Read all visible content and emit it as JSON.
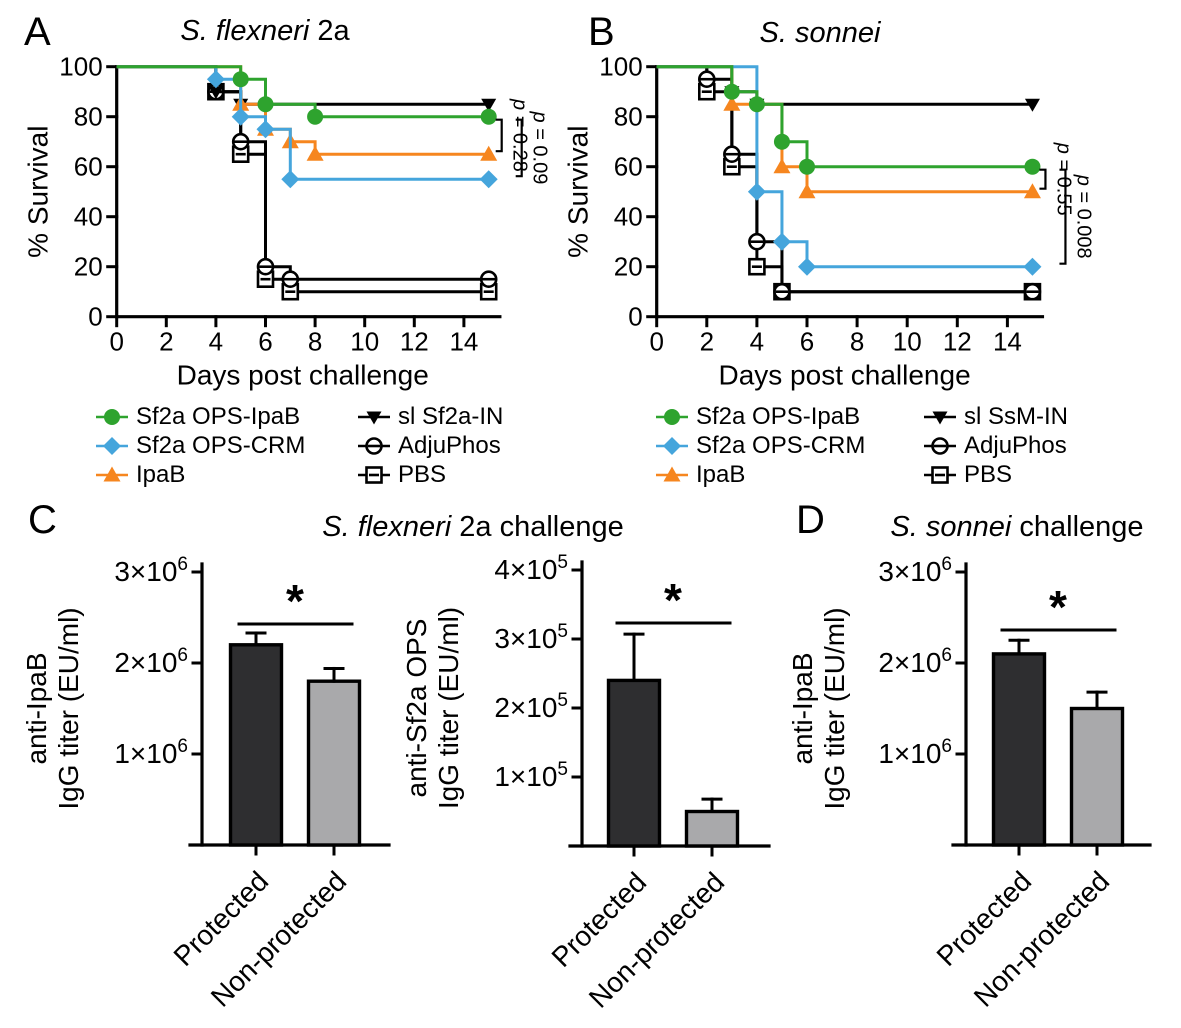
{
  "panels": {
    "a": {
      "label": "A",
      "title": {
        "italic": "S. flexneri",
        "regular": " 2a"
      }
    },
    "b": {
      "label": "B",
      "title": {
        "italic": "S. sonnei",
        "regular": ""
      }
    },
    "c": {
      "label": "C",
      "title": {
        "italic": "S. flexneri",
        "regular": " 2a challenge"
      }
    },
    "d": {
      "label": "D",
      "title": {
        "italic": "S. sonnei",
        "regular": " challenge"
      }
    }
  },
  "colors": {
    "green": "#2ea32e",
    "blue": "#45a5dc",
    "orange": "#f6861f",
    "black": "#000000",
    "bar_dark": "#2e2e30",
    "bar_gray": "#a9a9ab"
  },
  "chart_data": [
    {
      "panel": "A",
      "type": "line",
      "subtype": "kaplan_meier_step",
      "title": "S. flexneri 2a",
      "xlabel": "Days post challenge",
      "ylabel": "% Survival",
      "xlim": [
        0,
        15.5
      ],
      "ylim": [
        0,
        100
      ],
      "xticks": [
        0,
        2,
        4,
        6,
        8,
        10,
        12,
        14
      ],
      "yticks": [
        0,
        20,
        40,
        60,
        80,
        100
      ],
      "end_day": 15,
      "grid": false,
      "series": [
        {
          "name": "Sf2a OPS-IpaB",
          "color": "#2ea32e",
          "marker": "circle",
          "drops": [
            [
              5,
              95
            ],
            [
              6,
              85
            ],
            [
              8,
              80
            ]
          ],
          "final": 80
        },
        {
          "name": "Sf2a OPS-CRM",
          "color": "#45a5dc",
          "marker": "diamond",
          "drops": [
            [
              4,
              95
            ],
            [
              5,
              80
            ],
            [
              6,
              75
            ],
            [
              7,
              55
            ]
          ],
          "final": 55
        },
        {
          "name": "IpaB",
          "color": "#f6861f",
          "marker": "triangle-up",
          "drops": [
            [
              5,
              85
            ],
            [
              6,
              75
            ],
            [
              7,
              70
            ],
            [
              8,
              65
            ]
          ],
          "final": 65
        },
        {
          "name": "sl Sf2a-IN",
          "color": "#000000",
          "marker": "triangle-down",
          "drops": [
            [
              4,
              90
            ],
            [
              5,
              85
            ]
          ],
          "final": 85
        },
        {
          "name": "AdjuPhos",
          "color": "#000000",
          "marker": "circle-open",
          "drops": [
            [
              4,
              90
            ],
            [
              5,
              70
            ],
            [
              6,
              20
            ],
            [
              7,
              15
            ]
          ],
          "final": 15
        },
        {
          "name": "PBS",
          "color": "#000000",
          "marker": "square-open",
          "drops": [
            [
              4,
              90
            ],
            [
              5,
              65
            ],
            [
              6,
              15
            ],
            [
              7,
              10
            ]
          ],
          "final": 10
        }
      ],
      "pvalues": [
        {
          "label_var": "p",
          "label_rest": " = 0.28",
          "top": 80,
          "bottom": 65
        },
        {
          "label_var": "p",
          "label_rest": " = 0.09",
          "top": 80,
          "bottom": 55
        }
      ],
      "legend_columns": [
        [
          "Sf2a OPS-IpaB",
          "Sf2a OPS-CRM",
          "IpaB"
        ],
        [
          "sl Sf2a-IN",
          "AdjuPhos",
          "PBS"
        ]
      ]
    },
    {
      "panel": "B",
      "type": "line",
      "subtype": "kaplan_meier_step",
      "title": "S. sonnei",
      "xlabel": "Days post challenge",
      "ylabel": "% Survival",
      "xlim": [
        0,
        15.5
      ],
      "ylim": [
        0,
        100
      ],
      "xticks": [
        0,
        2,
        4,
        6,
        8,
        10,
        12,
        14
      ],
      "yticks": [
        0,
        20,
        40,
        60,
        80,
        100
      ],
      "end_day": 15,
      "grid": false,
      "series": [
        {
          "name": "Sf2a OPS-IpaB",
          "color": "#2ea32e",
          "marker": "circle",
          "drops": [
            [
              3,
              90
            ],
            [
              4,
              85
            ],
            [
              5,
              70
            ],
            [
              6,
              60
            ]
          ],
          "final": 60
        },
        {
          "name": "Sf2a OPS-CRM",
          "color": "#45a5dc",
          "marker": "diamond",
          "drops": [
            [
              4,
              50
            ],
            [
              5,
              30
            ],
            [
              6,
              20
            ]
          ],
          "final": 20
        },
        {
          "name": "IpaB",
          "color": "#f6861f",
          "marker": "triangle-up",
          "drops": [
            [
              3,
              85
            ],
            [
              5,
              60
            ],
            [
              6,
              50
            ]
          ],
          "final": 50
        },
        {
          "name": "sl SsM-IN",
          "color": "#000000",
          "marker": "triangle-down",
          "drops": [
            [
              3,
              90
            ],
            [
              4,
              85
            ]
          ],
          "final": 85
        },
        {
          "name": "AdjuPhos",
          "color": "#000000",
          "marker": "circle-open",
          "drops": [
            [
              2,
              95
            ],
            [
              3,
              65
            ],
            [
              4,
              30
            ],
            [
              5,
              10
            ]
          ],
          "final": 10
        },
        {
          "name": "PBS",
          "color": "#000000",
          "marker": "square-open",
          "drops": [
            [
              2,
              90
            ],
            [
              3,
              60
            ],
            [
              4,
              20
            ],
            [
              5,
              10
            ]
          ],
          "final": 10
        }
      ],
      "pvalues": [
        {
          "label_var": "p",
          "label_rest": " = 0.55",
          "top": 60,
          "bottom": 50
        },
        {
          "label_var": "p",
          "label_rest": " = 0.008",
          "top": 60,
          "bottom": 20
        }
      ],
      "legend_columns": [
        [
          "Sf2a OPS-IpaB",
          "Sf2a OPS-CRM",
          "IpaB"
        ],
        [
          "sl SsM-IN",
          "AdjuPhos",
          "PBS"
        ]
      ]
    },
    {
      "panel": "C",
      "type": "bar",
      "title": "S. flexneri 2a challenge",
      "charts": [
        {
          "ylabel_lines": [
            "anti-IpaB",
            "IgG titer (EU/ml)"
          ],
          "ymax": 3000000,
          "yticks": [
            {
              "value": 1000000,
              "base": "1×10",
              "exp": "6"
            },
            {
              "value": 2000000,
              "base": "2×10",
              "exp": "6"
            },
            {
              "value": 3000000,
              "base": "3×10",
              "exp": "6"
            }
          ],
          "categories": [
            "Protected",
            "Non-protected"
          ],
          "values": [
            2200000,
            1800000
          ],
          "errors": [
            130000,
            140000
          ],
          "bar_colors": [
            "#2e2e30",
            "#a9a9ab"
          ],
          "significance": "*"
        },
        {
          "ylabel_lines": [
            "anti-Sf2a OPS",
            "IgG titer (EU/ml)"
          ],
          "ymax": 400000,
          "yticks": [
            {
              "value": 100000,
              "base": "1×10",
              "exp": "5"
            },
            {
              "value": 200000,
              "base": "2×10",
              "exp": "5"
            },
            {
              "value": 300000,
              "base": "3×10",
              "exp": "5"
            },
            {
              "value": 400000,
              "base": "4×10",
              "exp": "5"
            }
          ],
          "categories": [
            "Protected",
            "Non-protected"
          ],
          "values": [
            240000,
            50000
          ],
          "errors": [
            67000,
            18000
          ],
          "bar_colors": [
            "#2e2e30",
            "#a9a9ab"
          ],
          "significance": "*"
        }
      ]
    },
    {
      "panel": "D",
      "type": "bar",
      "title": "S. sonnei challenge",
      "charts": [
        {
          "ylabel_lines": [
            "anti-IpaB",
            "IgG titer (EU/ml)"
          ],
          "ymax": 3000000,
          "yticks": [
            {
              "value": 1000000,
              "base": "1×10",
              "exp": "6"
            },
            {
              "value": 2000000,
              "base": "2×10",
              "exp": "6"
            },
            {
              "value": 3000000,
              "base": "3×10",
              "exp": "6"
            }
          ],
          "categories": [
            "Protected",
            "Non-protected"
          ],
          "values": [
            2100000,
            1500000
          ],
          "errors": [
            150000,
            180000
          ],
          "bar_colors": [
            "#2e2e30",
            "#a9a9ab"
          ],
          "significance": "*"
        }
      ]
    }
  ]
}
